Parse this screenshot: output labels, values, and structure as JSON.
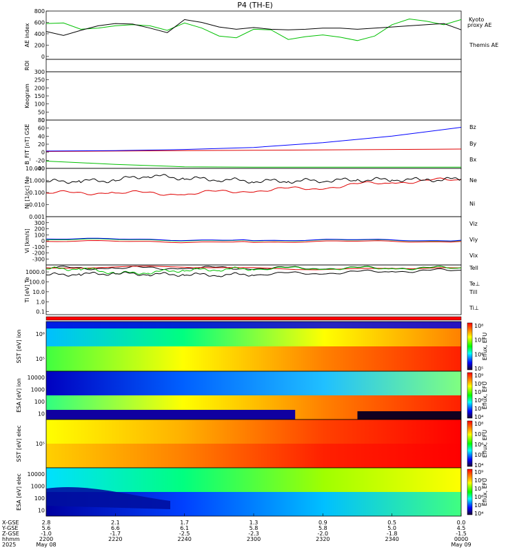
{
  "title": "P4 (TH-E)",
  "colors": {
    "black": "#000000",
    "green": "#00c000",
    "red": "#e00000",
    "blue": "#0000ff",
    "brightgreen": "#00ff00"
  },
  "chart_data": [
    {
      "id": "ae",
      "type": "line",
      "ylabel": "AE index",
      "ylim": [
        -50,
        800
      ],
      "yticks": [
        "800",
        "600",
        "400",
        "200",
        "0"
      ],
      "series": [
        {
          "name": "Kyoto proxy AE",
          "color": "#00c000",
          "x": [
            "22:00",
            "22:05",
            "22:10",
            "22:15",
            "22:20",
            "22:25",
            "22:30",
            "22:35",
            "22:40",
            "22:45",
            "22:50",
            "22:55",
            "23:00",
            "23:05",
            "23:10",
            "23:15",
            "23:20",
            "23:25",
            "23:30",
            "23:35",
            "23:40",
            "23:45",
            "23:50",
            "23:55",
            "00:00"
          ],
          "values": [
            580,
            590,
            480,
            500,
            540,
            560,
            540,
            460,
            590,
            500,
            360,
            330,
            480,
            470,
            300,
            350,
            380,
            340,
            280,
            360,
            560,
            660,
            620,
            560,
            650
          ]
        },
        {
          "name": "Themis AE",
          "color": "#000000",
          "x": [
            "22:00",
            "22:05",
            "22:10",
            "22:15",
            "22:20",
            "22:25",
            "22:30",
            "22:35",
            "22:40",
            "22:45",
            "22:50",
            "22:55",
            "23:00",
            "23:05",
            "23:10",
            "23:15",
            "23:20",
            "23:25",
            "23:30",
            "23:35",
            "23:40",
            "23:45",
            "23:50",
            "23:55",
            "00:00"
          ],
          "values": [
            440,
            370,
            460,
            540,
            580,
            570,
            500,
            420,
            650,
            600,
            520,
            480,
            510,
            480,
            470,
            480,
            500,
            500,
            480,
            500,
            520,
            540,
            560,
            580,
            470
          ]
        }
      ]
    },
    {
      "id": "roi",
      "type": "line",
      "ylabel": "ROI",
      "series": []
    },
    {
      "id": "keogram",
      "type": "line",
      "ylabel": "Keogram",
      "ylim": [
        0,
        300
      ],
      "yticks": [
        "300",
        "250",
        "200",
        "150",
        "100",
        "50",
        "0"
      ],
      "series": []
    },
    {
      "id": "bfield",
      "type": "line",
      "ylabel": "B_FIT [nT] GSE",
      "ylim": [
        -40,
        80
      ],
      "yticks": [
        "80",
        "60",
        "40",
        "20",
        "0",
        "-20",
        "-40"
      ],
      "series": [
        {
          "name": "Bz",
          "color": "#e00000",
          "x": [
            "22:00",
            "22:20",
            "22:40",
            "23:00",
            "23:20",
            "23:40",
            "00:00"
          ],
          "values": [
            2,
            3,
            4,
            5,
            6,
            7,
            8
          ]
        },
        {
          "name": "By",
          "color": "#00c000",
          "x": [
            "22:00",
            "22:20",
            "22:40",
            "23:00",
            "23:20",
            "23:40",
            "00:00"
          ],
          "values": [
            -22,
            -30,
            -36,
            -37,
            -37,
            -37,
            -37
          ]
        },
        {
          "name": "Bx",
          "color": "#0000ff",
          "x": [
            "22:00",
            "22:20",
            "22:40",
            "23:00",
            "23:20",
            "23:40",
            "00:00"
          ],
          "values": [
            3,
            4,
            7,
            12,
            24,
            40,
            62
          ]
        }
      ]
    },
    {
      "id": "density",
      "type": "line",
      "ylabel": "Ni [1/cc] Ne",
      "ylim": [
        0.001,
        10
      ],
      "log": true,
      "yticks": [
        "10.000",
        "1.000",
        "0.100",
        "0.010",
        "0.001"
      ],
      "series": [
        {
          "name": "Ne",
          "color": "#e00000",
          "x": [
            "22:00",
            "22:20",
            "22:40",
            "23:00",
            "23:20",
            "23:40",
            "00:00"
          ],
          "values": [
            0.09,
            0.1,
            0.08,
            0.15,
            0.25,
            0.7,
            1.2
          ]
        },
        {
          "name": "Ni",
          "color": "#000000",
          "x": [
            "22:00",
            "22:10",
            "22:20",
            "22:30",
            "22:40",
            "22:50",
            "23:00",
            "23:10",
            "23:20",
            "23:30",
            "23:40",
            "23:50",
            "00:00"
          ],
          "values": [
            0.8,
            0.9,
            1.0,
            2.5,
            1.5,
            1.2,
            0.9,
            0.9,
            1.0,
            1.1,
            1.2,
            1.1,
            1.3
          ]
        }
      ]
    },
    {
      "id": "velocity",
      "type": "line",
      "ylabel": "Vi [km/s]",
      "ylim": [
        -400,
        400
      ],
      "yticks": [
        "300",
        "200",
        "100",
        "0",
        "-100",
        "-200",
        "-300"
      ],
      "series": [
        {
          "name": "Viz",
          "color": "#e00000",
          "x": [
            "22:00",
            "23:00",
            "00:00"
          ],
          "values": [
            -10,
            -15,
            -10
          ]
        },
        {
          "name": "Viy",
          "color": "#00c000",
          "x": [
            "22:00",
            "23:00",
            "00:00"
          ],
          "values": [
            20,
            10,
            5
          ]
        },
        {
          "name": "Vix",
          "color": "#0000ff",
          "x": [
            "22:00",
            "23:00",
            "00:00"
          ],
          "values": [
            30,
            15,
            10
          ]
        }
      ]
    },
    {
      "id": "temperature",
      "type": "line",
      "ylabel": "Ti [eV] Te",
      "ylim": [
        0.05,
        5000
      ],
      "log": true,
      "yticks": [
        "1000.0",
        "100.0",
        "10.0",
        "1.0",
        "0.1"
      ],
      "series": [
        {
          "name": "Tell",
          "color": "#000000",
          "x": [
            "22:00",
            "22:20",
            "22:40",
            "23:00",
            "23:20",
            "23:40",
            "00:00"
          ],
          "values": [
            2500,
            2500,
            2600,
            2500,
            2500,
            2600,
            2500
          ]
        },
        {
          "name": "Te⊥",
          "color": "#e00000",
          "x": [
            "22:00",
            "00:00"
          ],
          "values": [
            2500,
            2500
          ]
        },
        {
          "name": "Till",
          "color": "#00c000",
          "x": [
            "22:00",
            "22:10",
            "22:20",
            "22:30",
            "22:40",
            "22:50",
            "23:00",
            "23:20",
            "23:40",
            "00:00"
          ],
          "values": [
            2000,
            2100,
            700,
            900,
            1500,
            1800,
            2200,
            2400,
            2400,
            2500
          ]
        },
        {
          "name": "Ti⊥",
          "color": "#0000ff",
          "x": [
            "22:00",
            "00:00"
          ],
          "values": [
            null,
            null
          ]
        },
        {
          "name": "Ti black",
          "color": "#000000",
          "x": [
            "22:00",
            "22:10",
            "22:20",
            "22:30",
            "22:40",
            "22:50",
            "23:00",
            "23:20",
            "23:40",
            "00:00"
          ],
          "values": [
            500,
            600,
            700,
            600,
            550,
            500,
            600,
            800,
            1200,
            1500
          ]
        }
      ]
    },
    {
      "id": "sst_e",
      "type": "heatmap",
      "ylabel": "SST [eV] ion",
      "yticks": [
        "10⁶",
        "10⁵"
      ],
      "colorbar": {
        "label": "Eflux, EFU",
        "ticks": [
          "10⁸",
          "10⁷",
          "10⁶",
          "10⁵"
        ]
      }
    },
    {
      "id": "esa_i",
      "type": "heatmap",
      "ylabel": "ESA [eV] ion",
      "yticks": [
        "10000",
        "1000",
        "100",
        "10"
      ],
      "colorbar": {
        "label": "Eflux, EFU",
        "ticks": [
          "10⁹",
          "10⁸",
          "10⁷",
          "10⁶",
          "10⁵",
          "10⁴"
        ]
      }
    },
    {
      "id": "sst_i2",
      "type": "heatmap",
      "ylabel": "SST [eV] elec",
      "yticks": [
        "10⁵"
      ],
      "colorbar": {
        "label": "Eflux, EFU",
        "ticks": [
          "10⁸",
          "10⁷",
          "10⁶",
          "10⁵",
          "10⁴"
        ]
      }
    },
    {
      "id": "esa_e",
      "type": "heatmap",
      "ylabel": "ESA [eV] elec",
      "yticks": [
        "10000",
        "1000",
        "100",
        "10"
      ],
      "colorbar": {
        "label": "Eflux, EFU",
        "ticks": [
          "10⁹",
          "10⁸",
          "10⁷",
          "10⁶",
          "10⁵",
          "10⁴"
        ]
      }
    }
  ],
  "legend_labels": {
    "kyoto": "Kyoto",
    "proxy": "proxy AE",
    "themis": "Themis AE",
    "bz": "Bz",
    "by": "By",
    "bx": "Bx",
    "ne": "Ne",
    "ni": "Ni",
    "viz": "Viz",
    "viy": "Viy",
    "vix": "Vix",
    "tell": "Tell",
    "teperp": "Te⊥",
    "till": "Till",
    "tiperp": "Ti⊥"
  },
  "panel_labels": {
    "ae": "AE index",
    "roi": "ROI",
    "keogram": "Keogram",
    "bfield": "B_FIT [nT] GSE",
    "density": "Ni [1/cc] Ne",
    "velocity": "Vi [km/s]",
    "temperature": "Ti [eV] Te",
    "sst1": "SST [eV]",
    "esa1": "ESA [eV]",
    "sst2": "SST [eV]",
    "esa2": "ESA [eV]"
  },
  "xaxis": {
    "row_labels": [
      "X-GSE",
      "Y-GSE",
      "Z-GSE",
      "hhmm",
      "2025"
    ],
    "columns": [
      {
        "x": "22:00",
        "vals": [
          "2.8",
          "5.6",
          "-1.0",
          "2200",
          "May 08"
        ]
      },
      {
        "x": "22:20",
        "vals": [
          "2.1",
          "6.6",
          "-1.7",
          "2220",
          ""
        ]
      },
      {
        "x": "22:40",
        "vals": [
          "1.7",
          "6.1",
          "-2.5",
          "2240",
          ""
        ]
      },
      {
        "x": "23:00",
        "vals": [
          "1.3",
          "5.8",
          "-2.3",
          "2300",
          ""
        ]
      },
      {
        "x": "23:20",
        "vals": [
          "0.9",
          "5.8",
          "-2.0",
          "2320",
          ""
        ]
      },
      {
        "x": "23:40",
        "vals": [
          "0.5",
          "5.0",
          "-1.8",
          "2340",
          ""
        ]
      },
      {
        "x": "00:00",
        "vals": [
          "0.0",
          "4.5",
          "-1.5",
          "0000",
          "May 09"
        ]
      }
    ]
  }
}
